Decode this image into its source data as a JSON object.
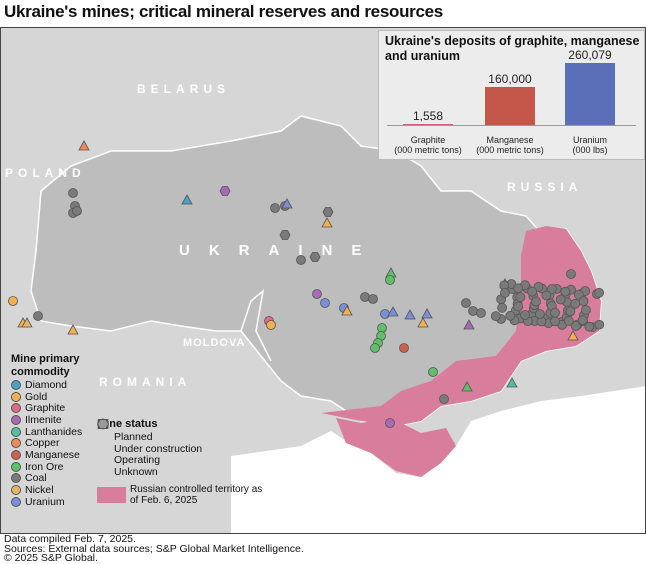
{
  "title": "Ukraine's mines; critical mineral reserves and resources",
  "countries": {
    "belarus": "BELARUS",
    "poland": "POLAND",
    "ukraine": "UKRAINE",
    "russia": "RUSSIA",
    "moldova": "MOLDOVA",
    "romania": "ROMANIA"
  },
  "colors": {
    "ukraine": "#bdbdbd",
    "neighbors": "#d6d6d6",
    "sea": "#ffffff",
    "russian_controlled": "#d97d9c"
  },
  "chart_data": {
    "type": "bar",
    "title": "Ukraine's deposits of graphite, manganese and uranium",
    "categories": [
      "Graphite",
      "Manganese",
      "Uranium"
    ],
    "units": [
      "(000 metric tons)",
      "(000 metric tons)",
      "(000 lbs)"
    ],
    "values": [
      1558,
      160000,
      260079
    ],
    "labels": [
      "1,558",
      "160,000",
      "260,079"
    ],
    "colors": [
      "#d2607a",
      "#c4574a",
      "#5a6fb8"
    ]
  },
  "legend": {
    "commodity_title": "Mine primary commodity",
    "commodities": [
      {
        "label": "Diamond",
        "color": "#4aa3c4"
      },
      {
        "label": "Gold",
        "color": "#f5b04e"
      },
      {
        "label": "Graphite",
        "color": "#e06a88"
      },
      {
        "label": "Ilmenite",
        "color": "#a86ab8"
      },
      {
        "label": "Lanthanides",
        "color": "#4fc0a0"
      },
      {
        "label": "Copper",
        "color": "#ee8a5a"
      },
      {
        "label": "Manganese",
        "color": "#d0604e"
      },
      {
        "label": "Iron Ore",
        "color": "#5fbf6a"
      },
      {
        "label": "Coal",
        "color": "#7a7a7a"
      },
      {
        "label": "Nickel",
        "color": "#e3b56a"
      },
      {
        "label": "Uranium",
        "color": "#7b8fd8"
      }
    ],
    "status_title": "Mine status",
    "statuses": [
      {
        "label": "Planned",
        "icon": "triangle-icon"
      },
      {
        "label": "Under construction",
        "icon": "square-icon"
      },
      {
        "label": "Operating",
        "icon": "circle-icon"
      },
      {
        "label": "Unknown",
        "icon": "hexagon-icon"
      }
    ],
    "territory_label": "Russian controlled territory as of Feb. 6, 2025"
  },
  "footer": {
    "compiled": "Data compiled Feb. 7, 2025.",
    "sources": "Sources: External data sources; S&P Global Market Intelligence.",
    "copyright": "© 2025 S&P Global."
  }
}
